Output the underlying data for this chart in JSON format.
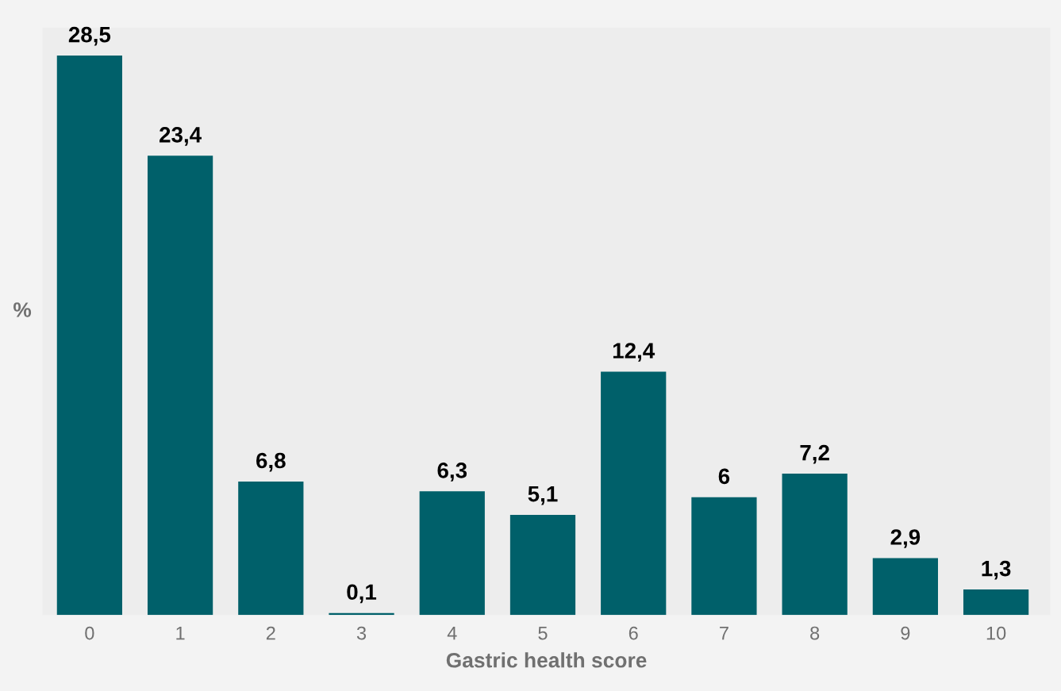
{
  "chart_data": {
    "type": "bar",
    "xlabel": "Gastric health score",
    "ylabel": "%",
    "categories": [
      "0",
      "1",
      "2",
      "3",
      "4",
      "5",
      "6",
      "7",
      "8",
      "9",
      "10"
    ],
    "values": [
      28.5,
      23.4,
      6.8,
      0.1,
      6.3,
      5.1,
      12.4,
      6,
      7.2,
      2.9,
      1.3
    ],
    "value_labels": [
      "28,5",
      "23,4",
      "6,8",
      "0,1",
      "6,3",
      "5,1",
      "12,4",
      "6",
      "7,2",
      "2,9",
      "1,3"
    ],
    "color": "#00606a",
    "tick_labels": "x",
    "grid": false,
    "legend": false
  }
}
